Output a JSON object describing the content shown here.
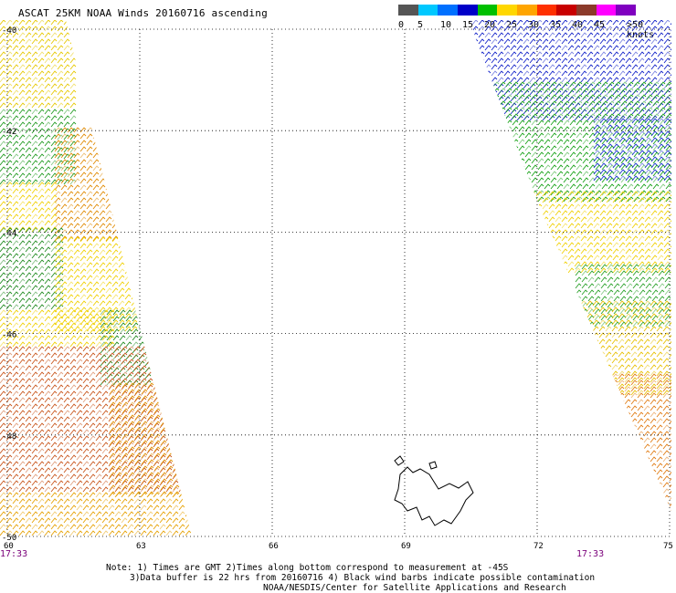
{
  "title": "ASCAT 25KM NOAA Winds 20160716 ascending",
  "legend": {
    "colors": [
      "#555555",
      "#00c8ff",
      "#0070ff",
      "#0000c8",
      "#00c000",
      "#ffd700",
      "#ffa500",
      "#ff3000",
      "#c80000",
      "#8b3a2a",
      "#ff00ff",
      "#8000c0"
    ],
    "labels": [
      "0",
      "5",
      "10",
      "15",
      "20",
      "25",
      "30",
      "35",
      "40",
      "45",
      ">50 knots"
    ]
  },
  "lat_labels": [
    "-40",
    "-42",
    "-44",
    "-46",
    "-48",
    "-50"
  ],
  "lon_labels": [
    "60",
    "63",
    "66",
    "69",
    "72",
    "75"
  ],
  "times": [
    "17:33",
    "17:33"
  ],
  "notes": {
    "line1": "Note: 1) Times are GMT 2)Times along bottom correspond to measurement at -45S",
    "line2": "3)Data buffer is 22 hrs from 20160716 4) Black wind barbs indicate possible contamination",
    "line3": "NOAA/NESDIS/Center for Satellite Applications and Research"
  },
  "map": {
    "lat_range": [
      -50,
      -40
    ],
    "lon_range": [
      60,
      75
    ],
    "grid": true,
    "features": [
      "left-swath",
      "right-swath",
      "island-outline"
    ]
  }
}
